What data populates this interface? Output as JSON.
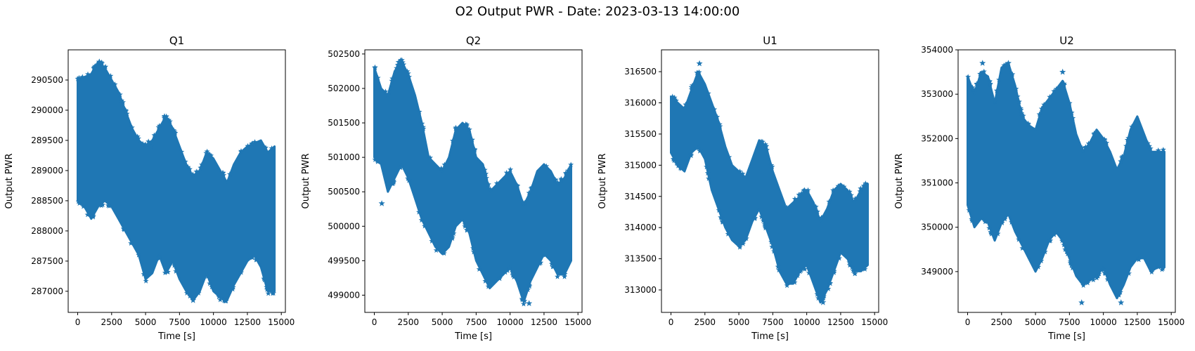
{
  "figure": {
    "suptitle": "O2 Output PWR - Date: 2023-03-13 14:00:00",
    "marker_color": "#1f77b4",
    "marker": "star"
  },
  "chart_data": [
    {
      "type": "scatter",
      "title": "Q1",
      "xlabel": "Time [s]",
      "ylabel": "Output PWR",
      "xlim": [
        -700,
        15300
      ],
      "ylim": [
        286650,
        291000
      ],
      "xticks": [
        0,
        2500,
        5000,
        7500,
        10000,
        12500,
        15000
      ],
      "yticks": [
        287000,
        287500,
        288000,
        288500,
        289000,
        289500,
        290000,
        290500
      ],
      "band": {
        "x": [
          0,
          500,
          1000,
          1500,
          2000,
          2500,
          3000,
          3500,
          4000,
          4500,
          5000,
          5500,
          6000,
          6500,
          7000,
          7500,
          8000,
          8500,
          9000,
          9500,
          10000,
          10500,
          11000,
          11500,
          12000,
          12500,
          13000,
          13500,
          14000,
          14500
        ],
        "upper": [
          290500,
          290550,
          290600,
          290800,
          290700,
          290500,
          290300,
          290000,
          289700,
          289500,
          289400,
          289500,
          289700,
          289900,
          289700,
          289400,
          289100,
          288900,
          289000,
          289300,
          289200,
          289000,
          288800,
          289100,
          289300,
          289400,
          289450,
          289500,
          289300,
          289400
        ],
        "lower": [
          288500,
          288400,
          288200,
          288400,
          288500,
          288400,
          288200,
          288000,
          287800,
          287600,
          287200,
          287300,
          287600,
          287300,
          287500,
          287200,
          287000,
          286850,
          287000,
          287300,
          287000,
          286900,
          286850,
          287100,
          287300,
          287500,
          287600,
          287400,
          287000,
          287000
        ]
      },
      "outliers": [
        [
          1600,
          290800
        ],
        [
          5400,
          289400
        ],
        [
          8500,
          286850
        ]
      ]
    },
    {
      "type": "scatter",
      "title": "Q2",
      "xlabel": "Time [s]",
      "ylabel": "Output PWR",
      "xlim": [
        -700,
        15300
      ],
      "ylim": [
        498750,
        502560
      ],
      "xticks": [
        0,
        2500,
        5000,
        7500,
        10000,
        12500,
        15000
      ],
      "yticks": [
        499000,
        499500,
        500000,
        500500,
        501000,
        501500,
        502000,
        502500
      ],
      "band": {
        "x": [
          0,
          500,
          1000,
          1500,
          2000,
          2500,
          3000,
          3500,
          4000,
          4500,
          5000,
          5500,
          6000,
          6500,
          7000,
          7500,
          8000,
          8500,
          9000,
          9500,
          10000,
          10500,
          11000,
          11500,
          12000,
          12500,
          13000,
          13500,
          14000,
          14500
        ],
        "upper": [
          502300,
          502000,
          501900,
          502250,
          502400,
          502200,
          501900,
          501500,
          501000,
          500900,
          500800,
          501000,
          501400,
          501500,
          501400,
          501000,
          500900,
          500500,
          500600,
          500700,
          500800,
          500600,
          500300,
          500500,
          500800,
          500900,
          500800,
          500600,
          500700,
          500900
        ],
        "lower": [
          501000,
          500900,
          500500,
          500700,
          500900,
          500700,
          500400,
          500100,
          499900,
          499700,
          499600,
          499700,
          500000,
          500100,
          499900,
          499500,
          499300,
          499100,
          499200,
          499300,
          499400,
          499200,
          498900,
          499200,
          499400,
          499600,
          499500,
          499300,
          499300,
          499500
        ]
      },
      "outliers": [
        [
          1800,
          502380
        ],
        [
          550,
          500330
        ],
        [
          11400,
          498880
        ]
      ]
    },
    {
      "type": "scatter",
      "title": "U1",
      "xlabel": "Time [s]",
      "ylabel": "Output PWR",
      "xlim": [
        -700,
        15300
      ],
      "ylim": [
        312640,
        316850
      ],
      "xticks": [
        0,
        2500,
        5000,
        7500,
        10000,
        12500,
        15000
      ],
      "yticks": [
        313000,
        313500,
        314000,
        314500,
        315000,
        315500,
        316000,
        316500
      ],
      "band": {
        "x": [
          0,
          500,
          1000,
          1500,
          2000,
          2500,
          3000,
          3500,
          4000,
          4500,
          5000,
          5500,
          6000,
          6500,
          7000,
          7500,
          8000,
          8500,
          9000,
          9500,
          10000,
          10500,
          11000,
          11500,
          12000,
          12500,
          13000,
          13500,
          14000,
          14500
        ],
        "upper": [
          316100,
          316000,
          315900,
          316200,
          316500,
          316300,
          316000,
          315700,
          315300,
          315000,
          314900,
          314800,
          315100,
          315400,
          315300,
          314900,
          314600,
          314300,
          314400,
          314500,
          314600,
          314400,
          314100,
          314300,
          314600,
          314700,
          314600,
          314400,
          314600,
          314700
        ],
        "lower": [
          315200,
          315000,
          314900,
          315200,
          315300,
          315100,
          314600,
          314300,
          314000,
          313800,
          313700,
          313800,
          314100,
          314300,
          314000,
          313700,
          313300,
          313100,
          313100,
          313300,
          313400,
          313100,
          312800,
          313000,
          313300,
          313600,
          313500,
          313300,
          313300,
          313400
        ]
      },
      "outliers": [
        [
          2100,
          316630
        ],
        [
          11200,
          312800
        ]
      ]
    },
    {
      "type": "scatter",
      "title": "U2",
      "xlabel": "Time [s]",
      "ylabel": "Output PWR",
      "xlim": [
        -700,
        15300
      ],
      "ylim": [
        348080,
        354000
      ],
      "xticks": [
        0,
        2500,
        5000,
        7500,
        10000,
        12500,
        15000
      ],
      "yticks": [
        349000,
        350000,
        351000,
        352000,
        353000,
        354000
      ],
      "band": {
        "x": [
          0,
          500,
          1000,
          1500,
          2000,
          2500,
          3000,
          3500,
          4000,
          4500,
          5000,
          5500,
          6000,
          6500,
          7000,
          7500,
          8000,
          8500,
          9000,
          9500,
          10000,
          10500,
          11000,
          11500,
          12000,
          12500,
          13000,
          13500,
          14000,
          14500
        ],
        "upper": [
          353400,
          353000,
          353500,
          353400,
          352800,
          353600,
          353700,
          353200,
          352500,
          352300,
          352200,
          352700,
          352900,
          353100,
          353300,
          352800,
          352100,
          351700,
          351900,
          352200,
          352000,
          351700,
          351300,
          351600,
          352200,
          352500,
          352100,
          351700,
          351700,
          351700
        ],
        "lower": [
          350500,
          350000,
          350200,
          350100,
          349700,
          350100,
          350300,
          349900,
          349600,
          349300,
          349000,
          349300,
          349700,
          349900,
          349700,
          349300,
          348900,
          348700,
          348800,
          348900,
          349100,
          348700,
          348400,
          348700,
          349100,
          349300,
          349300,
          349000,
          349100,
          349100
        ]
      },
      "outliers": [
        [
          1100,
          353700
        ],
        [
          3000,
          353700
        ],
        [
          7000,
          353500
        ],
        [
          11300,
          348300
        ],
        [
          8400,
          348300
        ]
      ]
    }
  ]
}
